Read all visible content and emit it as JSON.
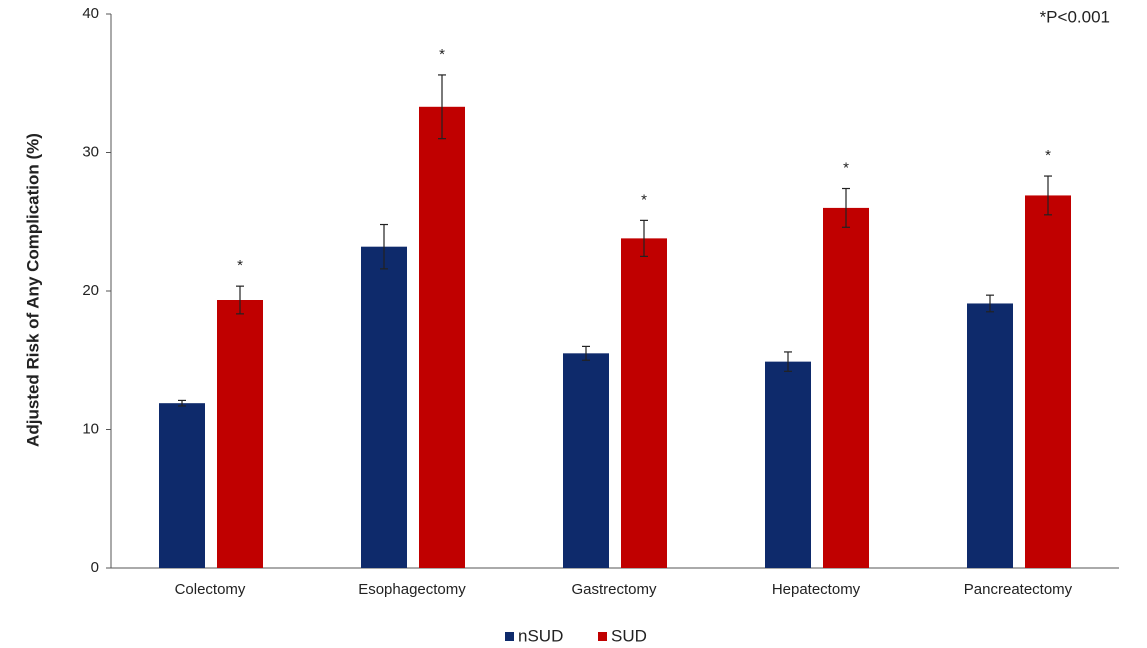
{
  "chart_data": {
    "type": "bar",
    "ylabel": "Adjusted Risk of Any Complication (%)",
    "annotation": "*P<0.001",
    "categories": [
      "Colectomy",
      "Esophagectomy",
      "Gastrectomy",
      "Hepatectomy",
      "Pancreatectomy"
    ],
    "series": [
      {
        "name": "nSUD",
        "color": "#0e2a6b",
        "values": [
          11.9,
          23.2,
          15.5,
          14.9,
          19.1
        ],
        "errors": [
          0.2,
          1.6,
          0.5,
          0.7,
          0.6
        ]
      },
      {
        "name": "SUD",
        "color": "#c00000",
        "values": [
          19.35,
          33.3,
          23.8,
          26.0,
          26.9
        ],
        "errors": [
          1.0,
          2.3,
          1.3,
          1.4,
          1.4
        ],
        "significance_labels": [
          "*",
          "*",
          "*",
          "*",
          "*"
        ]
      }
    ],
    "ylim": [
      0,
      40
    ],
    "yticks": [
      0,
      10,
      20,
      30,
      40
    ],
    "grid": false,
    "legend": "bottom"
  }
}
